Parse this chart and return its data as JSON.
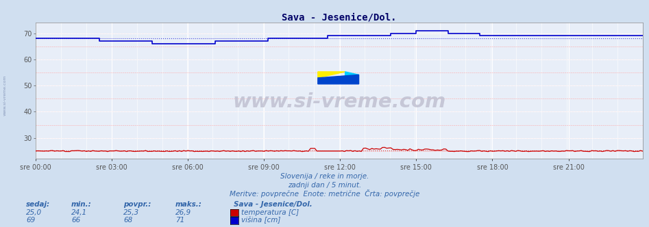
{
  "title": "Sava - Jesenice/Dol.",
  "bg_color": "#d0dff0",
  "plot_bg_color": "#e8eef8",
  "grid_color_white": "#ffffff",
  "grid_color_pink": "#ffaaaa",
  "x_labels": [
    "sre 00:00",
    "sre 03:00",
    "sre 06:00",
    "sre 09:00",
    "sre 12:00",
    "sre 15:00",
    "sre 18:00",
    "sre 21:00"
  ],
  "x_ticks_idx": [
    0,
    36,
    72,
    108,
    144,
    180,
    216,
    252
  ],
  "n_points": 288,
  "ylim": [
    22.0,
    74.0
  ],
  "yticks": [
    30,
    40,
    50,
    60,
    70
  ],
  "temp_color": "#cc0000",
  "height_color": "#0000cc",
  "avg_temp_color": "#dd4444",
  "avg_height_color": "#4444dd",
  "subtitle1": "Slovenija / reke in morje.",
  "subtitle2": "zadnji dan / 5 minut.",
  "subtitle3": "Meritve: povprečne  Enote: metrične  Črta: povprečje",
  "footer_label1": "sedaj:",
  "footer_label2": "min.:",
  "footer_label3": "povpr.:",
  "footer_label4": "maks.:",
  "footer_station": "Sava - Jesenice/Dol.",
  "temp_sedaj": "25,0",
  "temp_min": "24,1",
  "temp_povpr": "25,3",
  "temp_maks": "26,9",
  "height_sedaj": "69",
  "height_min": "66",
  "height_povpr": "68",
  "height_maks": "71",
  "temp_label": "temperatura [C]",
  "height_label": "višina [cm]",
  "watermark": "www.si-vreme.com",
  "title_color": "#000066",
  "text_color": "#3366aa",
  "footer_color": "#3366aa",
  "avg_temp": 25.3,
  "avg_height": 68.0,
  "logo_yellow": "#ffee00",
  "logo_cyan": "#00ccff",
  "logo_blue": "#0044cc"
}
